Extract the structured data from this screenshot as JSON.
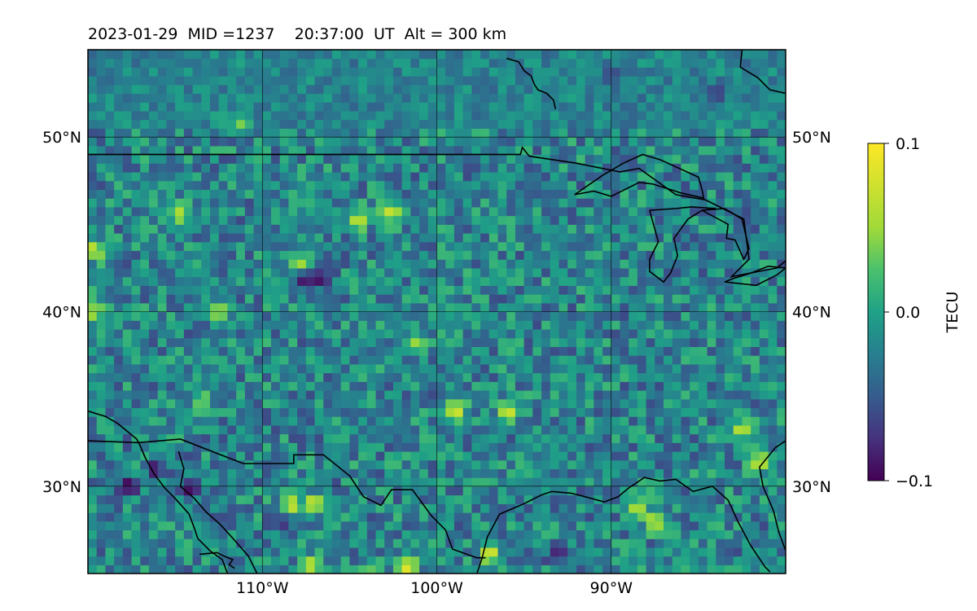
{
  "chart_data": {
    "type": "heatmap",
    "title": "2023-01-29  MID =1237    20:37:00  UT  Alt = 300 km",
    "projection": "lon-lat map",
    "extent": {
      "lon": [
        -120,
        -80
      ],
      "lat": [
        25,
        55
      ]
    },
    "x_ticks": [
      "110°W",
      "100°W",
      "90°W"
    ],
    "x_tick_values": [
      -110,
      -100,
      -90
    ],
    "y_ticks": [
      "50°N",
      "40°N",
      "30°N"
    ],
    "y_tick_values": [
      50,
      40,
      30
    ],
    "grid": true,
    "colorbar": {
      "label": "TECU",
      "colormap": "viridis",
      "range": [
        -0.1,
        0.1
      ],
      "ticks": [
        "0.1",
        "0.0",
        "−0.1"
      ],
      "tick_values": [
        0.1,
        0.0,
        -0.1
      ]
    },
    "field": {
      "description_bins": "approx 0.5 degree cells",
      "cell_deg": 0.5,
      "background_value": -0.01,
      "noise_amplitude": 0.045,
      "hotspots": [
        {
          "lon": -104.5,
          "lat": 45.2,
          "value": 0.1
        },
        {
          "lon": -102.6,
          "lat": 45.8,
          "value": 0.09
        },
        {
          "lon": -107.7,
          "lat": 42.7,
          "value": 0.085
        },
        {
          "lon": -106.6,
          "lat": 41.9,
          "value": -0.1
        },
        {
          "lon": -107.6,
          "lat": 41.8,
          "value": -0.09
        },
        {
          "lon": -108.5,
          "lat": 28.9,
          "value": 0.1
        },
        {
          "lon": -107.0,
          "lat": 29.0,
          "value": 0.095
        },
        {
          "lon": -101.7,
          "lat": 25.4,
          "value": 0.1
        },
        {
          "lon": -107.1,
          "lat": 25.5,
          "value": 0.09
        },
        {
          "lon": -117.7,
          "lat": 30.0,
          "value": -0.1
        },
        {
          "lon": -116.1,
          "lat": 31.0,
          "value": -0.09
        },
        {
          "lon": -114.2,
          "lat": 29.9,
          "value": -0.1
        },
        {
          "lon": -109.0,
          "lat": 28.0,
          "value": -0.08
        },
        {
          "lon": -98.9,
          "lat": 34.4,
          "value": 0.1
        },
        {
          "lon": -95.9,
          "lat": 34.2,
          "value": 0.09
        },
        {
          "lon": -97.0,
          "lat": 26.2,
          "value": 0.095
        },
        {
          "lon": -87.5,
          "lat": 28.0,
          "value": 0.09
        },
        {
          "lon": -88.5,
          "lat": 28.7,
          "value": 0.08
        },
        {
          "lon": -93.0,
          "lat": 26.2,
          "value": -0.09
        },
        {
          "lon": -82.5,
          "lat": 33.2,
          "value": 0.09
        },
        {
          "lon": -81.5,
          "lat": 31.5,
          "value": 0.09
        },
        {
          "lon": -114.8,
          "lat": 45.6,
          "value": 0.08
        },
        {
          "lon": -112.6,
          "lat": 40.0,
          "value": 0.08
        },
        {
          "lon": -119.6,
          "lat": 43.5,
          "value": 0.09
        },
        {
          "lon": -119.7,
          "lat": 40.0,
          "value": 0.08
        },
        {
          "lon": -101.3,
          "lat": 38.2,
          "value": 0.07
        },
        {
          "lon": -113.5,
          "lat": 34.9,
          "value": 0.06
        },
        {
          "lon": -84.0,
          "lat": 52.5,
          "value": -0.07
        },
        {
          "lon": -90.0,
          "lat": 53.5,
          "value": -0.06
        },
        {
          "lon": -111.3,
          "lat": 50.8,
          "value": 0.06
        },
        {
          "lon": -103.7,
          "lat": 25.3,
          "value": 0.05
        }
      ]
    },
    "coastlines": [
      [
        [
          -120,
          34.3
        ],
        [
          -119.0,
          34.0
        ],
        [
          -118.3,
          33.6
        ],
        [
          -117.2,
          32.7
        ],
        [
          -117.0,
          32.3
        ],
        [
          -116.7,
          31.6
        ],
        [
          -116.2,
          30.7
        ],
        [
          -115.6,
          29.9
        ],
        [
          -115.0,
          29.3
        ],
        [
          -114.2,
          28.4
        ],
        [
          -113.9,
          27.6
        ],
        [
          -113.7,
          27.0
        ],
        [
          -113.0,
          26.3
        ],
        [
          -112.3,
          25.8
        ],
        [
          -112.0,
          25.0
        ]
      ],
      [
        [
          -114.8,
          32.0
        ],
        [
          -114.5,
          31.0
        ],
        [
          -114.7,
          30.0
        ],
        [
          -113.9,
          29.3
        ],
        [
          -113.2,
          28.5
        ],
        [
          -112.4,
          27.8
        ],
        [
          -111.5,
          26.8
        ],
        [
          -110.8,
          26.0
        ],
        [
          -110.3,
          25.0
        ]
      ],
      [
        [
          -113.6,
          26.1
        ],
        [
          -112.6,
          26.2
        ],
        [
          -112.2,
          26.0
        ],
        [
          -111.7,
          25.8
        ],
        [
          -111.9,
          25.5
        ],
        [
          -111.6,
          25.3
        ]
      ],
      [
        [
          -97.7,
          25.0
        ],
        [
          -97.4,
          25.9
        ],
        [
          -97.1,
          27.1
        ],
        [
          -96.4,
          28.4
        ],
        [
          -95.0,
          29.0
        ],
        [
          -94.0,
          29.5
        ],
        [
          -93.4,
          29.7
        ],
        [
          -92.3,
          29.6
        ],
        [
          -91.5,
          29.4
        ],
        [
          -90.4,
          29.1
        ],
        [
          -89.6,
          29.4
        ],
        [
          -89.0,
          29.9
        ],
        [
          -88.1,
          30.5
        ],
        [
          -87.2,
          30.3
        ],
        [
          -86.3,
          30.4
        ],
        [
          -85.3,
          29.7
        ],
        [
          -84.2,
          30.0
        ],
        [
          -83.3,
          29.2
        ],
        [
          -82.7,
          27.9
        ],
        [
          -82.0,
          26.6
        ],
        [
          -81.2,
          25.4
        ],
        [
          -80.9,
          25.1
        ]
      ],
      [
        [
          -80.0,
          26.3
        ],
        [
          -80.4,
          27.4
        ],
        [
          -80.7,
          28.6
        ],
        [
          -81.3,
          30.0
        ],
        [
          -81.5,
          31.1
        ],
        [
          -80.6,
          32.2
        ],
        [
          -80.0,
          32.6
        ]
      ],
      [
        [
          -96.0,
          54.5
        ],
        [
          -95.3,
          54.3
        ],
        [
          -95.0,
          53.8
        ],
        [
          -94.6,
          53.5
        ],
        [
          -94.4,
          53.0
        ],
        [
          -94.2,
          52.7
        ],
        [
          -93.7,
          52.5
        ],
        [
          -93.3,
          52.1
        ],
        [
          -93.2,
          51.6
        ]
      ],
      [
        [
          -82.5,
          55.0
        ],
        [
          -82.6,
          54.0
        ],
        [
          -81.6,
          53.4
        ],
        [
          -80.9,
          52.7
        ],
        [
          -80.0,
          52.5
        ]
      ]
    ],
    "borders": [
      [
        [
          -120,
          49.0
        ],
        [
          -95.2,
          49.0
        ],
        [
          -95.1,
          49.4
        ],
        [
          -94.7,
          48.9
        ],
        [
          -92.0,
          48.5
        ],
        [
          -90.0,
          48.1
        ],
        [
          -89.5,
          48.0
        ],
        [
          -88.4,
          48.2
        ],
        [
          -86.3,
          46.7
        ],
        [
          -84.6,
          46.4
        ],
        [
          -83.6,
          45.9
        ],
        [
          -82.4,
          45.3
        ],
        [
          -82.1,
          43.0
        ],
        [
          -83.1,
          42.0
        ],
        [
          -80.5,
          42.5
        ],
        [
          -80.0,
          42.9
        ]
      ],
      [
        [
          -120,
          32.6
        ],
        [
          -117.1,
          32.5
        ],
        [
          -114.7,
          32.7
        ],
        [
          -111.1,
          31.3
        ],
        [
          -108.2,
          31.3
        ],
        [
          -108.2,
          31.8
        ],
        [
          -106.5,
          31.8
        ],
        [
          -105.0,
          30.6
        ],
        [
          -104.2,
          29.4
        ],
        [
          -103.2,
          28.9
        ],
        [
          -102.6,
          29.8
        ],
        [
          -101.4,
          29.8
        ],
        [
          -100.3,
          28.3
        ],
        [
          -99.5,
          27.5
        ],
        [
          -99.1,
          26.4
        ],
        [
          -97.7,
          25.9
        ],
        [
          -97.2,
          25.9
        ]
      ]
    ],
    "lakes": [
      [
        [
          -92.1,
          46.7
        ],
        [
          -91.0,
          46.9
        ],
        [
          -90.0,
          46.6
        ],
        [
          -88.4,
          47.4
        ],
        [
          -87.6,
          47.3
        ],
        [
          -86.0,
          46.8
        ],
        [
          -84.7,
          46.5
        ],
        [
          -84.8,
          47.0
        ],
        [
          -85.0,
          47.7
        ],
        [
          -86.1,
          48.2
        ],
        [
          -87.2,
          48.7
        ],
        [
          -88.2,
          49.0
        ],
        [
          -89.3,
          48.5
        ],
        [
          -90.5,
          47.8
        ],
        [
          -92.1,
          46.7
        ]
      ],
      [
        [
          -87.8,
          45.8
        ],
        [
          -87.3,
          44.0
        ],
        [
          -87.8,
          43.0
        ],
        [
          -87.8,
          42.3
        ],
        [
          -87.0,
          41.7
        ],
        [
          -86.6,
          42.2
        ],
        [
          -86.2,
          43.2
        ],
        [
          -86.4,
          44.2
        ],
        [
          -85.6,
          45.3
        ],
        [
          -84.8,
          45.8
        ],
        [
          -84.0,
          45.9
        ],
        [
          -85.4,
          46.0
        ],
        [
          -86.3,
          45.9
        ],
        [
          -87.8,
          45.8
        ]
      ],
      [
        [
          -84.8,
          45.8
        ],
        [
          -83.5,
          45.9
        ],
        [
          -82.5,
          45.3
        ],
        [
          -82.1,
          43.6
        ],
        [
          -82.4,
          43.0
        ],
        [
          -82.9,
          44.1
        ],
        [
          -83.4,
          44.2
        ],
        [
          -83.3,
          45.0
        ],
        [
          -84.8,
          45.8
        ]
      ],
      [
        [
          -83.5,
          41.7
        ],
        [
          -81.7,
          41.5
        ],
        [
          -80.5,
          42.1
        ],
        [
          -80.0,
          42.5
        ],
        [
          -81.0,
          42.6
        ],
        [
          -82.0,
          42.2
        ],
        [
          -83.0,
          41.9
        ],
        [
          -83.5,
          41.7
        ]
      ]
    ]
  }
}
